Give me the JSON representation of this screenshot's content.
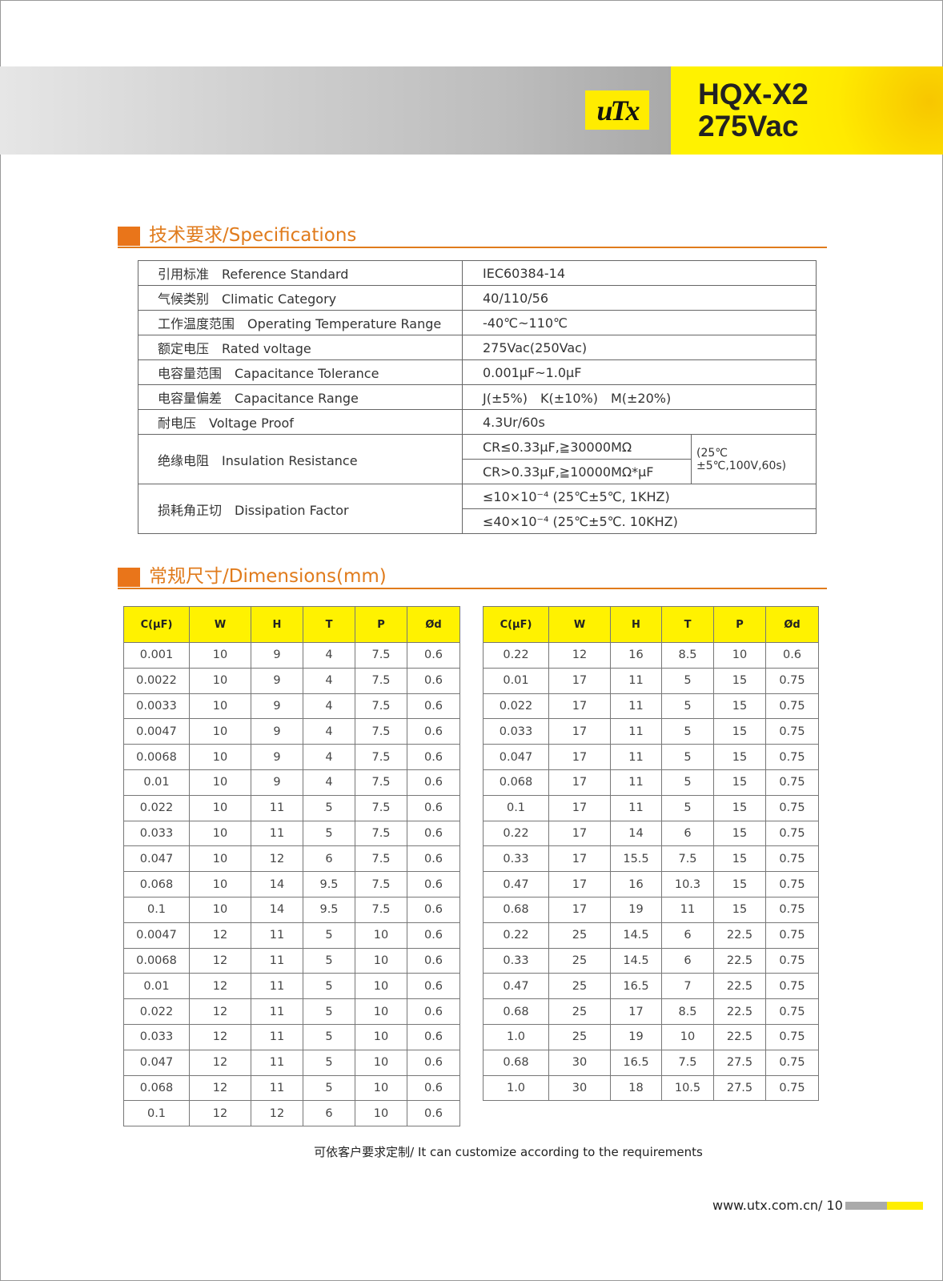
{
  "header": {
    "logo": "UTX",
    "model": "HQX-X2",
    "voltage": "275Vac",
    "colors": {
      "accent": "#e9751a",
      "yellow": "#fff200"
    }
  },
  "specs": {
    "title": "技术要求/Specifications",
    "rows": [
      {
        "label": "引用标准　Reference Standard",
        "value": "IEC60384-14"
      },
      {
        "label": "气候类别　Climatic Category",
        "value": "40/110/56"
      },
      {
        "label": "工作温度范围　Operating Temperature Range",
        "value": "-40℃~110℃"
      },
      {
        "label": "额定电压　Rated voltage",
        "value": "275Vac(250Vac)"
      },
      {
        "label": "电容量范围　Capacitance Tolerance",
        "value": "0.001μF~1.0μF"
      },
      {
        "label": "电容量偏差　Capacitance Range",
        "value": "J(±5%)　K(±10%)　M(±20%)"
      },
      {
        "label": "耐电压　Voltage Proof",
        "value": "4.3Ur/60s"
      }
    ],
    "insulation": {
      "label": "绝缘电阻　Insulation Resistance",
      "v1": "CR≤0.33μF,≧30000MΩ",
      "v2": "CR>0.33μF,≧10000MΩ*μF",
      "note": "(25℃±5℃,100V,60s)"
    },
    "dissipation": {
      "label": "损耗角正切　Dissipation Factor",
      "v1": "≤10×10⁻⁴ (25℃±5℃, 1KHZ)",
      "v2": "≤40×10⁻⁴ (25℃±5℃. 10KHZ)"
    }
  },
  "dimensions": {
    "title": "常规尺寸/Dimensions(mm)",
    "headers": [
      "C(μF)",
      "W",
      "H",
      "T",
      "P",
      "Ød"
    ],
    "left": [
      [
        "0.001",
        "10",
        "9",
        "4",
        "7.5",
        "0.6"
      ],
      [
        "0.0022",
        "10",
        "9",
        "4",
        "7.5",
        "0.6"
      ],
      [
        "0.0033",
        "10",
        "9",
        "4",
        "7.5",
        "0.6"
      ],
      [
        "0.0047",
        "10",
        "9",
        "4",
        "7.5",
        "0.6"
      ],
      [
        "0.0068",
        "10",
        "9",
        "4",
        "7.5",
        "0.6"
      ],
      [
        "0.01",
        "10",
        "9",
        "4",
        "7.5",
        "0.6"
      ],
      [
        "0.022",
        "10",
        "11",
        "5",
        "7.5",
        "0.6"
      ],
      [
        "0.033",
        "10",
        "11",
        "5",
        "7.5",
        "0.6"
      ],
      [
        "0.047",
        "10",
        "12",
        "6",
        "7.5",
        "0.6"
      ],
      [
        "0.068",
        "10",
        "14",
        "9.5",
        "7.5",
        "0.6"
      ],
      [
        "0.1",
        "10",
        "14",
        "9.5",
        "7.5",
        "0.6"
      ],
      [
        "0.0047",
        "12",
        "11",
        "5",
        "10",
        "0.6"
      ],
      [
        "0.0068",
        "12",
        "11",
        "5",
        "10",
        "0.6"
      ],
      [
        "0.01",
        "12",
        "11",
        "5",
        "10",
        "0.6"
      ],
      [
        "0.022",
        "12",
        "11",
        "5",
        "10",
        "0.6"
      ],
      [
        "0.033",
        "12",
        "11",
        "5",
        "10",
        "0.6"
      ],
      [
        "0.047",
        "12",
        "11",
        "5",
        "10",
        "0.6"
      ],
      [
        "0.068",
        "12",
        "11",
        "5",
        "10",
        "0.6"
      ],
      [
        "0.1",
        "12",
        "12",
        "6",
        "10",
        "0.6"
      ]
    ],
    "right": [
      [
        "0.22",
        "12",
        "16",
        "8.5",
        "10",
        "0.6"
      ],
      [
        "0.01",
        "17",
        "11",
        "5",
        "15",
        "0.75"
      ],
      [
        "0.022",
        "17",
        "11",
        "5",
        "15",
        "0.75"
      ],
      [
        "0.033",
        "17",
        "11",
        "5",
        "15",
        "0.75"
      ],
      [
        "0.047",
        "17",
        "11",
        "5",
        "15",
        "0.75"
      ],
      [
        "0.068",
        "17",
        "11",
        "5",
        "15",
        "0.75"
      ],
      [
        "0.1",
        "17",
        "11",
        "5",
        "15",
        "0.75"
      ],
      [
        "0.22",
        "17",
        "14",
        "6",
        "15",
        "0.75"
      ],
      [
        "0.33",
        "17",
        "15.5",
        "7.5",
        "15",
        "0.75"
      ],
      [
        "0.47",
        "17",
        "16",
        "10.3",
        "15",
        "0.75"
      ],
      [
        "0.68",
        "17",
        "19",
        "11",
        "15",
        "0.75"
      ],
      [
        "0.22",
        "25",
        "14.5",
        "6",
        "22.5",
        "0.75"
      ],
      [
        "0.33",
        "25",
        "14.5",
        "6",
        "22.5",
        "0.75"
      ],
      [
        "0.47",
        "25",
        "16.5",
        "7",
        "22.5",
        "0.75"
      ],
      [
        "0.68",
        "25",
        "17",
        "8.5",
        "22.5",
        "0.75"
      ],
      [
        "1.0",
        "25",
        "19",
        "10",
        "22.5",
        "0.75"
      ],
      [
        "0.68",
        "30",
        "16.5",
        "7.5",
        "27.5",
        "0.75"
      ],
      [
        "1.0",
        "30",
        "18",
        "10.5",
        "27.5",
        "0.75"
      ]
    ]
  },
  "footer": {
    "note": "可依客户要求定制/ It can customize according to the requirements",
    "url": "www.utx.com.cn/ 10"
  }
}
